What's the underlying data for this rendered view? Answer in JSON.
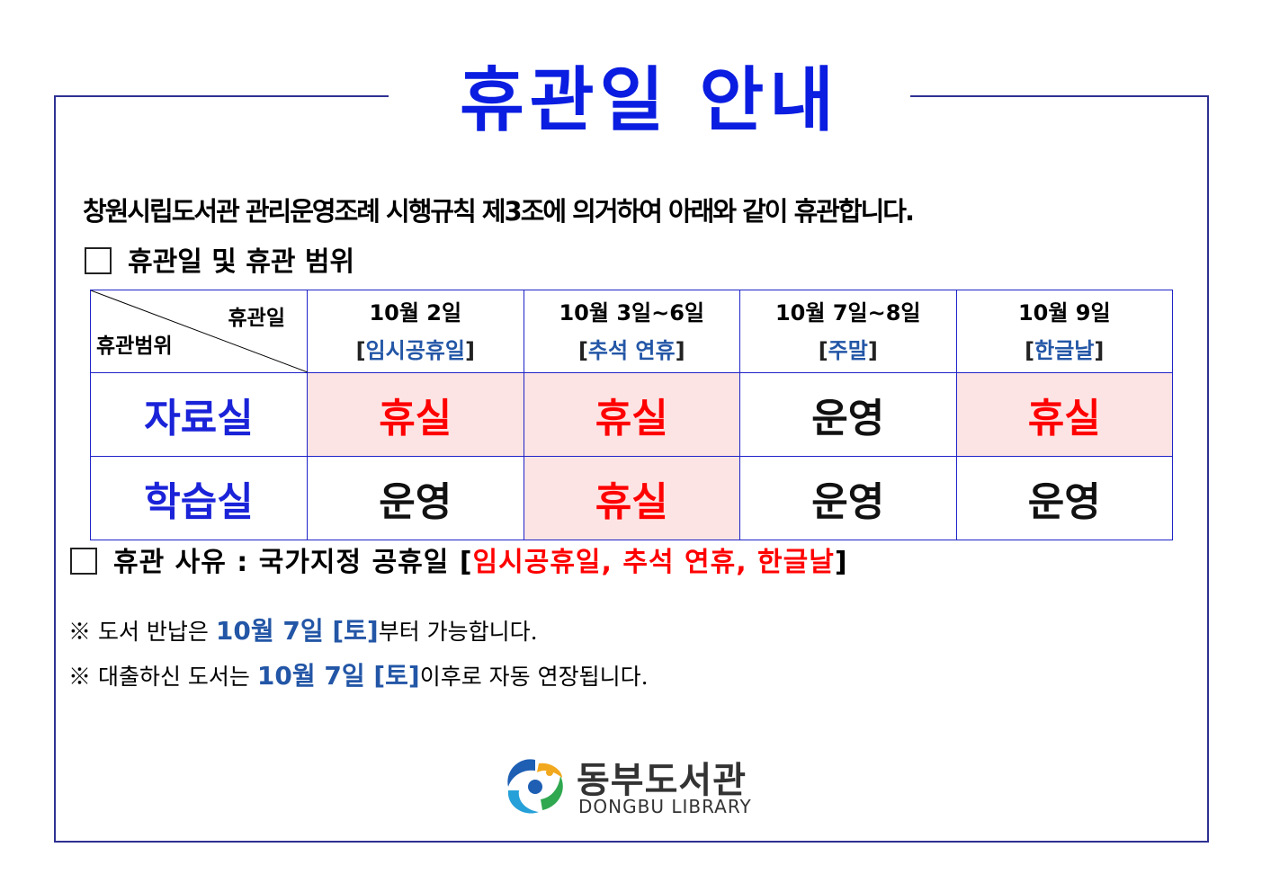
{
  "title": "휴관일 안내",
  "intro": "창원시립도서관 관리운영조례 시행규칙 제3조에 의거하여 아래와 같이 휴관합니다.",
  "section1": "휴관일 및 휴관 범위",
  "table": {
    "corner_top": "휴관일",
    "corner_bottom": "휴관범위",
    "columns": [
      {
        "date": "10월 2일",
        "label": "임시공휴일"
      },
      {
        "date": "10월 3일~6일",
        "label": "추석 연휴"
      },
      {
        "date": "10월 7일~8일",
        "label": "주말"
      },
      {
        "date": "10월 9일",
        "label": "한글날"
      }
    ],
    "rows": [
      {
        "name": "자료실",
        "cells": [
          "휴실",
          "휴실",
          "운영",
          "휴실"
        ]
      },
      {
        "name": "학습실",
        "cells": [
          "운영",
          "휴실",
          "운영",
          "운영"
        ]
      }
    ]
  },
  "section2": {
    "prefix": "휴관 사유 : 국가지정 공휴일 [",
    "reasons": "임시공휴일, 추석 연휴, 한글날",
    "suffix": "]"
  },
  "notes": [
    {
      "mark": "※",
      "before": "도서 반납은",
      "highlight": "10월 7일 [토]",
      "after": "부터 가능합니다."
    },
    {
      "mark": "※",
      "before": "대출하신 도서는",
      "highlight": "10월 7일 [토]",
      "after": "이후로 자동 연장됩니다."
    }
  ],
  "logo": {
    "korean": "동부도서관",
    "english": "DONGBU LIBRARY"
  },
  "colors": {
    "title": "#0a1de0",
    "frame": "#2e3192",
    "closed_bg": "#fde4e4",
    "closed_text": "#ff0000",
    "accent_blue": "#2356a6"
  }
}
